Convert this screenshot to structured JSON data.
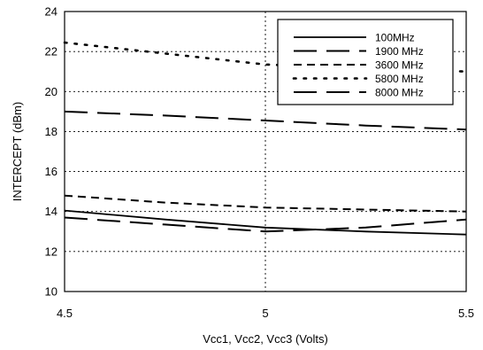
{
  "chart_data": {
    "type": "line",
    "xlabel": "Vcc1, Vcc2, Vcc3 (Volts)",
    "ylabel": "INTERCEPT (dBm)",
    "xlim": [
      4.5,
      5.5
    ],
    "ylim": [
      10,
      24
    ],
    "xticks": [
      "4.5",
      "5",
      "5.5"
    ],
    "yticks": [
      "10",
      "12",
      "14",
      "16",
      "18",
      "20",
      "22",
      "24"
    ],
    "grid": "dotted",
    "legend_position": "top-right",
    "series": [
      {
        "name": "100MHz",
        "style": "solid",
        "x": [
          4.5,
          4.75,
          5.0,
          5.25,
          5.5
        ],
        "y": [
          14.05,
          13.6,
          13.2,
          13.0,
          12.85
        ]
      },
      {
        "name": "1900 MHz",
        "style": "longdash",
        "x": [
          4.5,
          4.75,
          5.0,
          5.25,
          5.5
        ],
        "y": [
          19.0,
          18.8,
          18.55,
          18.3,
          18.1
        ]
      },
      {
        "name": "3600 MHz",
        "style": "dash",
        "x": [
          4.5,
          4.75,
          5.0,
          5.25,
          5.5
        ],
        "y": [
          14.8,
          14.45,
          14.2,
          14.1,
          14.0
        ]
      },
      {
        "name": "5800 MHz",
        "style": "dot",
        "x": [
          4.5,
          4.75,
          5.0,
          5.25,
          5.5
        ],
        "y": [
          22.45,
          21.9,
          21.35,
          21.15,
          21.0
        ]
      },
      {
        "name": "8000 MHz",
        "style": "longdash",
        "x": [
          4.5,
          4.75,
          5.0,
          5.25,
          5.5
        ],
        "y": [
          13.7,
          13.35,
          13.0,
          13.2,
          13.6
        ]
      }
    ]
  }
}
